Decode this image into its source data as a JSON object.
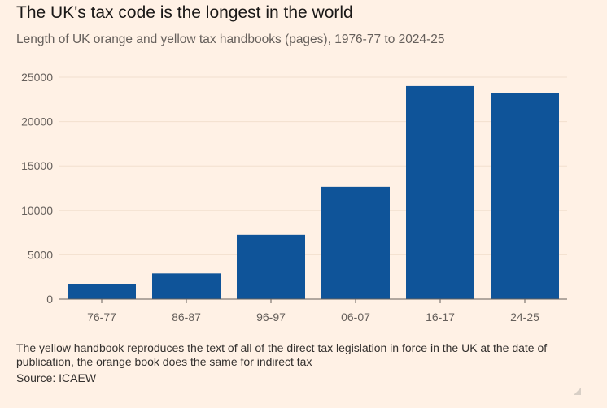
{
  "title": "The UK's tax code is the longest in the world",
  "subtitle": "Length of UK orange and yellow tax handbooks (pages), 1976-77 to 2024-25",
  "footnote": "The yellow handbook reproduces the text of all of the direct tax legislation in force in the UK at the date of publication, the orange book does the same for indirect tax",
  "source": "Source: ICAEW",
  "colors": {
    "bar": "#0f5499",
    "background": "#fff1e5",
    "gridline": "#f2dfce"
  },
  "chart_data": {
    "type": "bar",
    "categories": [
      "76-77",
      "86-87",
      "96-97",
      "06-07",
      "16-17",
      "24-25"
    ],
    "values": [
      1650,
      2900,
      7250,
      12650,
      24000,
      23200
    ],
    "ylim": [
      0,
      25000
    ],
    "yticks": [
      "0",
      "5000",
      "10000",
      "15000",
      "20000",
      "25000"
    ],
    "grid": true,
    "xlabel": "",
    "ylabel": ""
  }
}
